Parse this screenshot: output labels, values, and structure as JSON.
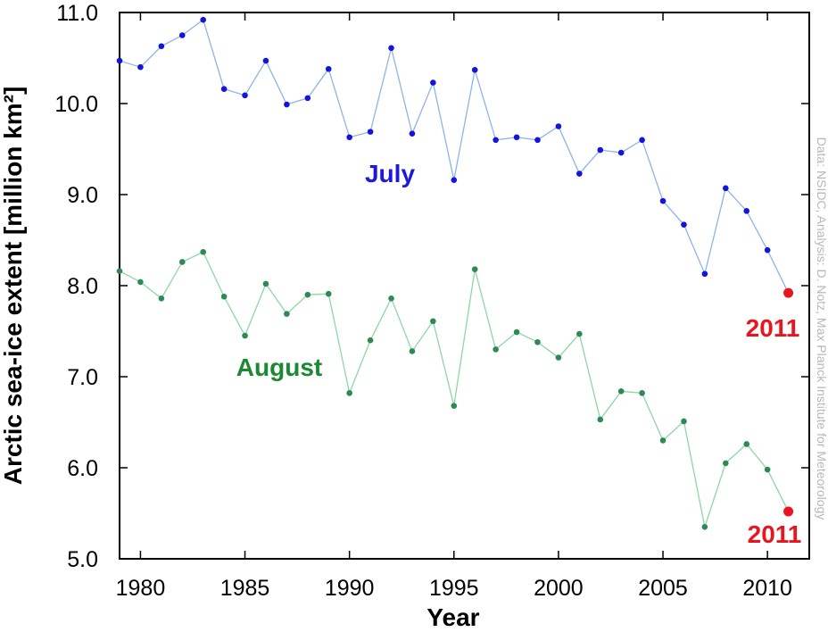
{
  "chart_data": {
    "type": "line",
    "title": "",
    "xlabel": "Year",
    "ylabel": "Arctic sea-ice extent [million km²]",
    "xlim": [
      1979,
      2012
    ],
    "ylim": [
      5.0,
      11.0
    ],
    "x_ticks": [
      1980,
      1985,
      1990,
      1995,
      2000,
      2005,
      2010
    ],
    "y_ticks": [
      "5.0",
      "6.0",
      "7.0",
      "8.0",
      "9.0",
      "10.0",
      "11.0"
    ],
    "x": [
      1979,
      1980,
      1981,
      1982,
      1983,
      1984,
      1985,
      1986,
      1987,
      1988,
      1989,
      1990,
      1991,
      1992,
      1993,
      1994,
      1995,
      1996,
      1997,
      1998,
      1999,
      2000,
      2001,
      2002,
      2003,
      2004,
      2005,
      2006,
      2007,
      2008,
      2009,
      2010,
      2011
    ],
    "series": [
      {
        "name": "July",
        "line_color": "#8cb4e8",
        "marker_color": "#1414dc",
        "label_color": "#1a1ad8",
        "values": [
          10.47,
          10.4,
          10.63,
          10.75,
          10.92,
          10.16,
          10.09,
          10.47,
          9.99,
          10.06,
          10.38,
          9.63,
          9.69,
          10.61,
          9.67,
          10.23,
          9.16,
          10.37,
          9.6,
          9.63,
          9.6,
          9.75,
          9.23,
          9.49,
          9.46,
          9.6,
          8.93,
          8.67,
          8.13,
          9.07,
          8.82,
          8.39,
          7.92
        ]
      },
      {
        "name": "August",
        "line_color": "#8fd6a6",
        "marker_color": "#2e8a55",
        "label_color": "#1a8a30",
        "values": [
          8.16,
          8.04,
          7.86,
          8.26,
          8.37,
          7.88,
          7.45,
          8.02,
          7.69,
          7.9,
          7.91,
          6.82,
          7.4,
          7.86,
          7.28,
          7.61,
          6.68,
          8.18,
          7.3,
          7.49,
          7.38,
          7.21,
          7.47,
          6.53,
          6.84,
          6.82,
          6.3,
          6.51,
          5.35,
          6.05,
          6.26,
          5.98,
          5.52
        ]
      }
    ],
    "highlight": {
      "year": 2011,
      "label": "2011",
      "color": "#e8141e"
    },
    "grid": false,
    "legend": "inline labels",
    "credit": "Data: NSIDC, Analysis: D. Notz, Max Planck Institute for Meteorology"
  }
}
